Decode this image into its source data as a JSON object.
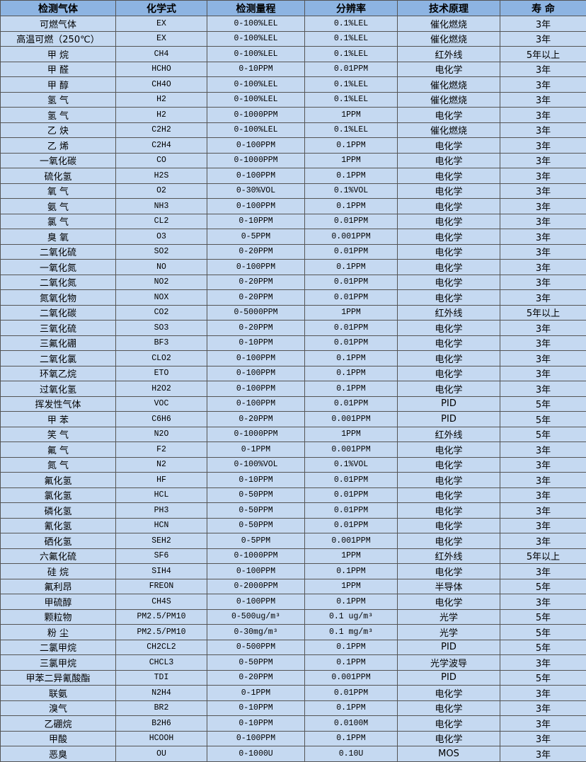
{
  "colors": {
    "header_bg": "#8DB4E2",
    "row_bg": "#C5D9F1",
    "border": "#555555"
  },
  "table": {
    "headers": [
      "检测气体",
      "化学式",
      "检测量程",
      "分辨率",
      "技术原理",
      "寿 命"
    ],
    "rows": [
      [
        "可燃气体",
        "EX",
        "0-100%LEL",
        "0.1%LEL",
        "催化燃烧",
        "3年"
      ],
      [
        "高温可燃（250℃）",
        "EX",
        "0-100%LEL",
        "0.1%LEL",
        "催化燃烧",
        "3年"
      ],
      [
        "甲 烷",
        "CH4",
        "0-100%LEL",
        "0.1%LEL",
        "红外线",
        "5年以上"
      ],
      [
        "甲 醛",
        "HCHO",
        "0-10PPM",
        "0.01PPM",
        "电化学",
        "3年"
      ],
      [
        "甲 醇",
        "CH4O",
        "0-100%LEL",
        "0.1%LEL",
        "催化燃烧",
        "3年"
      ],
      [
        "氢 气",
        "H2",
        "0-100%LEL",
        "0.1%LEL",
        "催化燃烧",
        "3年"
      ],
      [
        "氢 气",
        "H2",
        "0-1000PPM",
        "1PPM",
        "电化学",
        "3年"
      ],
      [
        "乙 炔",
        "C2H2",
        "0-100%LEL",
        "0.1%LEL",
        "催化燃烧",
        "3年"
      ],
      [
        "乙 烯",
        "C2H4",
        "0-100PPM",
        "0.1PPM",
        "电化学",
        "3年"
      ],
      [
        "一氧化碳",
        "CO",
        "0-1000PPM",
        "1PPM",
        "电化学",
        "3年"
      ],
      [
        "硫化氢",
        "H2S",
        "0-100PPM",
        "0.1PPM",
        "电化学",
        "3年"
      ],
      [
        "氧 气",
        "O2",
        "0-30%VOL",
        "0.1%VOL",
        "电化学",
        "3年"
      ],
      [
        "氨 气",
        "NH3",
        "0-100PPM",
        "0.1PPM",
        "电化学",
        "3年"
      ],
      [
        "氯 气",
        "CL2",
        "0-10PPM",
        "0.01PPM",
        "电化学",
        "3年"
      ],
      [
        "臭 氧",
        "O3",
        "0-5PPM",
        "0.001PPM",
        "电化学",
        "3年"
      ],
      [
        "二氧化硫",
        "SO2",
        "0-20PPM",
        "0.01PPM",
        "电化学",
        "3年"
      ],
      [
        "一氧化氮",
        "NO",
        "0-100PPM",
        "0.1PPM",
        "电化学",
        "3年"
      ],
      [
        "二氧化氮",
        "NO2",
        "0-20PPM",
        "0.01PPM",
        "电化学",
        "3年"
      ],
      [
        "氮氧化物",
        "NOX",
        "0-20PPM",
        "0.01PPM",
        "电化学",
        "3年"
      ],
      [
        "二氧化碳",
        "CO2",
        "0-5000PPM",
        "1PPM",
        "红外线",
        "5年以上"
      ],
      [
        "三氧化硫",
        "SO3",
        "0-20PPM",
        "0.01PPM",
        "电化学",
        "3年"
      ],
      [
        "三氟化硼",
        "BF3",
        "0-10PPM",
        "0.01PPM",
        "电化学",
        "3年"
      ],
      [
        "二氧化氯",
        "CLO2",
        "0-100PPM",
        "0.1PPM",
        "电化学",
        "3年"
      ],
      [
        "环氧乙烷",
        "ETO",
        "0-100PPM",
        "0.1PPM",
        "电化学",
        "3年"
      ],
      [
        "过氧化氢",
        "H2O2",
        "0-100PPM",
        "0.1PPM",
        "电化学",
        "3年"
      ],
      [
        "挥发性气体",
        "VOC",
        "0-100PPM",
        "0.01PPM",
        "PID",
        "5年"
      ],
      [
        "甲 苯",
        "C6H6",
        "0-20PPM",
        "0.001PPM",
        "PID",
        "5年"
      ],
      [
        "笑 气",
        "N2O",
        "0-1000PPM",
        "1PPM",
        "红外线",
        "5年"
      ],
      [
        "氟 气",
        "F2",
        "0-1PPM",
        "0.001PPM",
        "电化学",
        "3年"
      ],
      [
        "氮 气",
        "N2",
        "0-100%VOL",
        "0.1%VOL",
        "电化学",
        "3年"
      ],
      [
        "氟化氢",
        "HF",
        "0-10PPM",
        "0.01PPM",
        "电化学",
        "3年"
      ],
      [
        "氯化氢",
        "HCL",
        "0-50PPM",
        "0.01PPM",
        "电化学",
        "3年"
      ],
      [
        "磷化氢",
        "PH3",
        "0-50PPM",
        "0.01PPM",
        "电化学",
        "3年"
      ],
      [
        "氰化氢",
        "HCN",
        "0-50PPM",
        "0.01PPM",
        "电化学",
        "3年"
      ],
      [
        "硒化氢",
        "SEH2",
        "0-5PPM",
        "0.001PPM",
        "电化学",
        "3年"
      ],
      [
        "六氟化硫",
        "SF6",
        "0-1000PPM",
        "1PPM",
        "红外线",
        "5年以上"
      ],
      [
        "硅 烷",
        "SIH4",
        "0-100PPM",
        "0.1PPM",
        "电化学",
        "3年"
      ],
      [
        "氟利昂",
        "FREON",
        "0-2000PPM",
        "1PPM",
        "半导体",
        "5年"
      ],
      [
        "甲硫醇",
        "CH4S",
        "0-100PPM",
        "0.1PPM",
        "电化学",
        "3年"
      ],
      [
        "颗粒物",
        "PM2.5/PM10",
        "0-500ug/m³",
        "0.1 ug/m³",
        "光学",
        "5年"
      ],
      [
        "粉 尘",
        "PM2.5/PM10",
        "0-30mg/m³",
        "0.1 mg/m³",
        "光学",
        "5年"
      ],
      [
        "二氯甲烷",
        "CH2CL2",
        "0-500PPM",
        "0.1PPM",
        "PID",
        "5年"
      ],
      [
        "三氯甲烷",
        "CHCL3",
        "0-50PPM",
        "0.1PPM",
        "光学波导",
        "3年"
      ],
      [
        "甲苯二异氰酸酯",
        "TDI",
        "0-20PPM",
        "0.001PPM",
        "PID",
        "5年"
      ],
      [
        "联氨",
        "N2H4",
        "0-1PPM",
        "0.01PPM",
        "电化学",
        "3年"
      ],
      [
        "溴气",
        "BR2",
        "0-10PPM",
        "0.1PPM",
        "电化学",
        "3年"
      ],
      [
        "乙硼烷",
        "B2H6",
        "0-10PPM",
        "0.0100M",
        "电化学",
        "3年"
      ],
      [
        "甲酸",
        "HCOOH",
        "0-100PPM",
        "0.1PPM",
        "电化学",
        "3年"
      ],
      [
        "恶臭",
        "OU",
        "0-1000U",
        "0.10U",
        "MOS",
        "3年"
      ]
    ]
  }
}
